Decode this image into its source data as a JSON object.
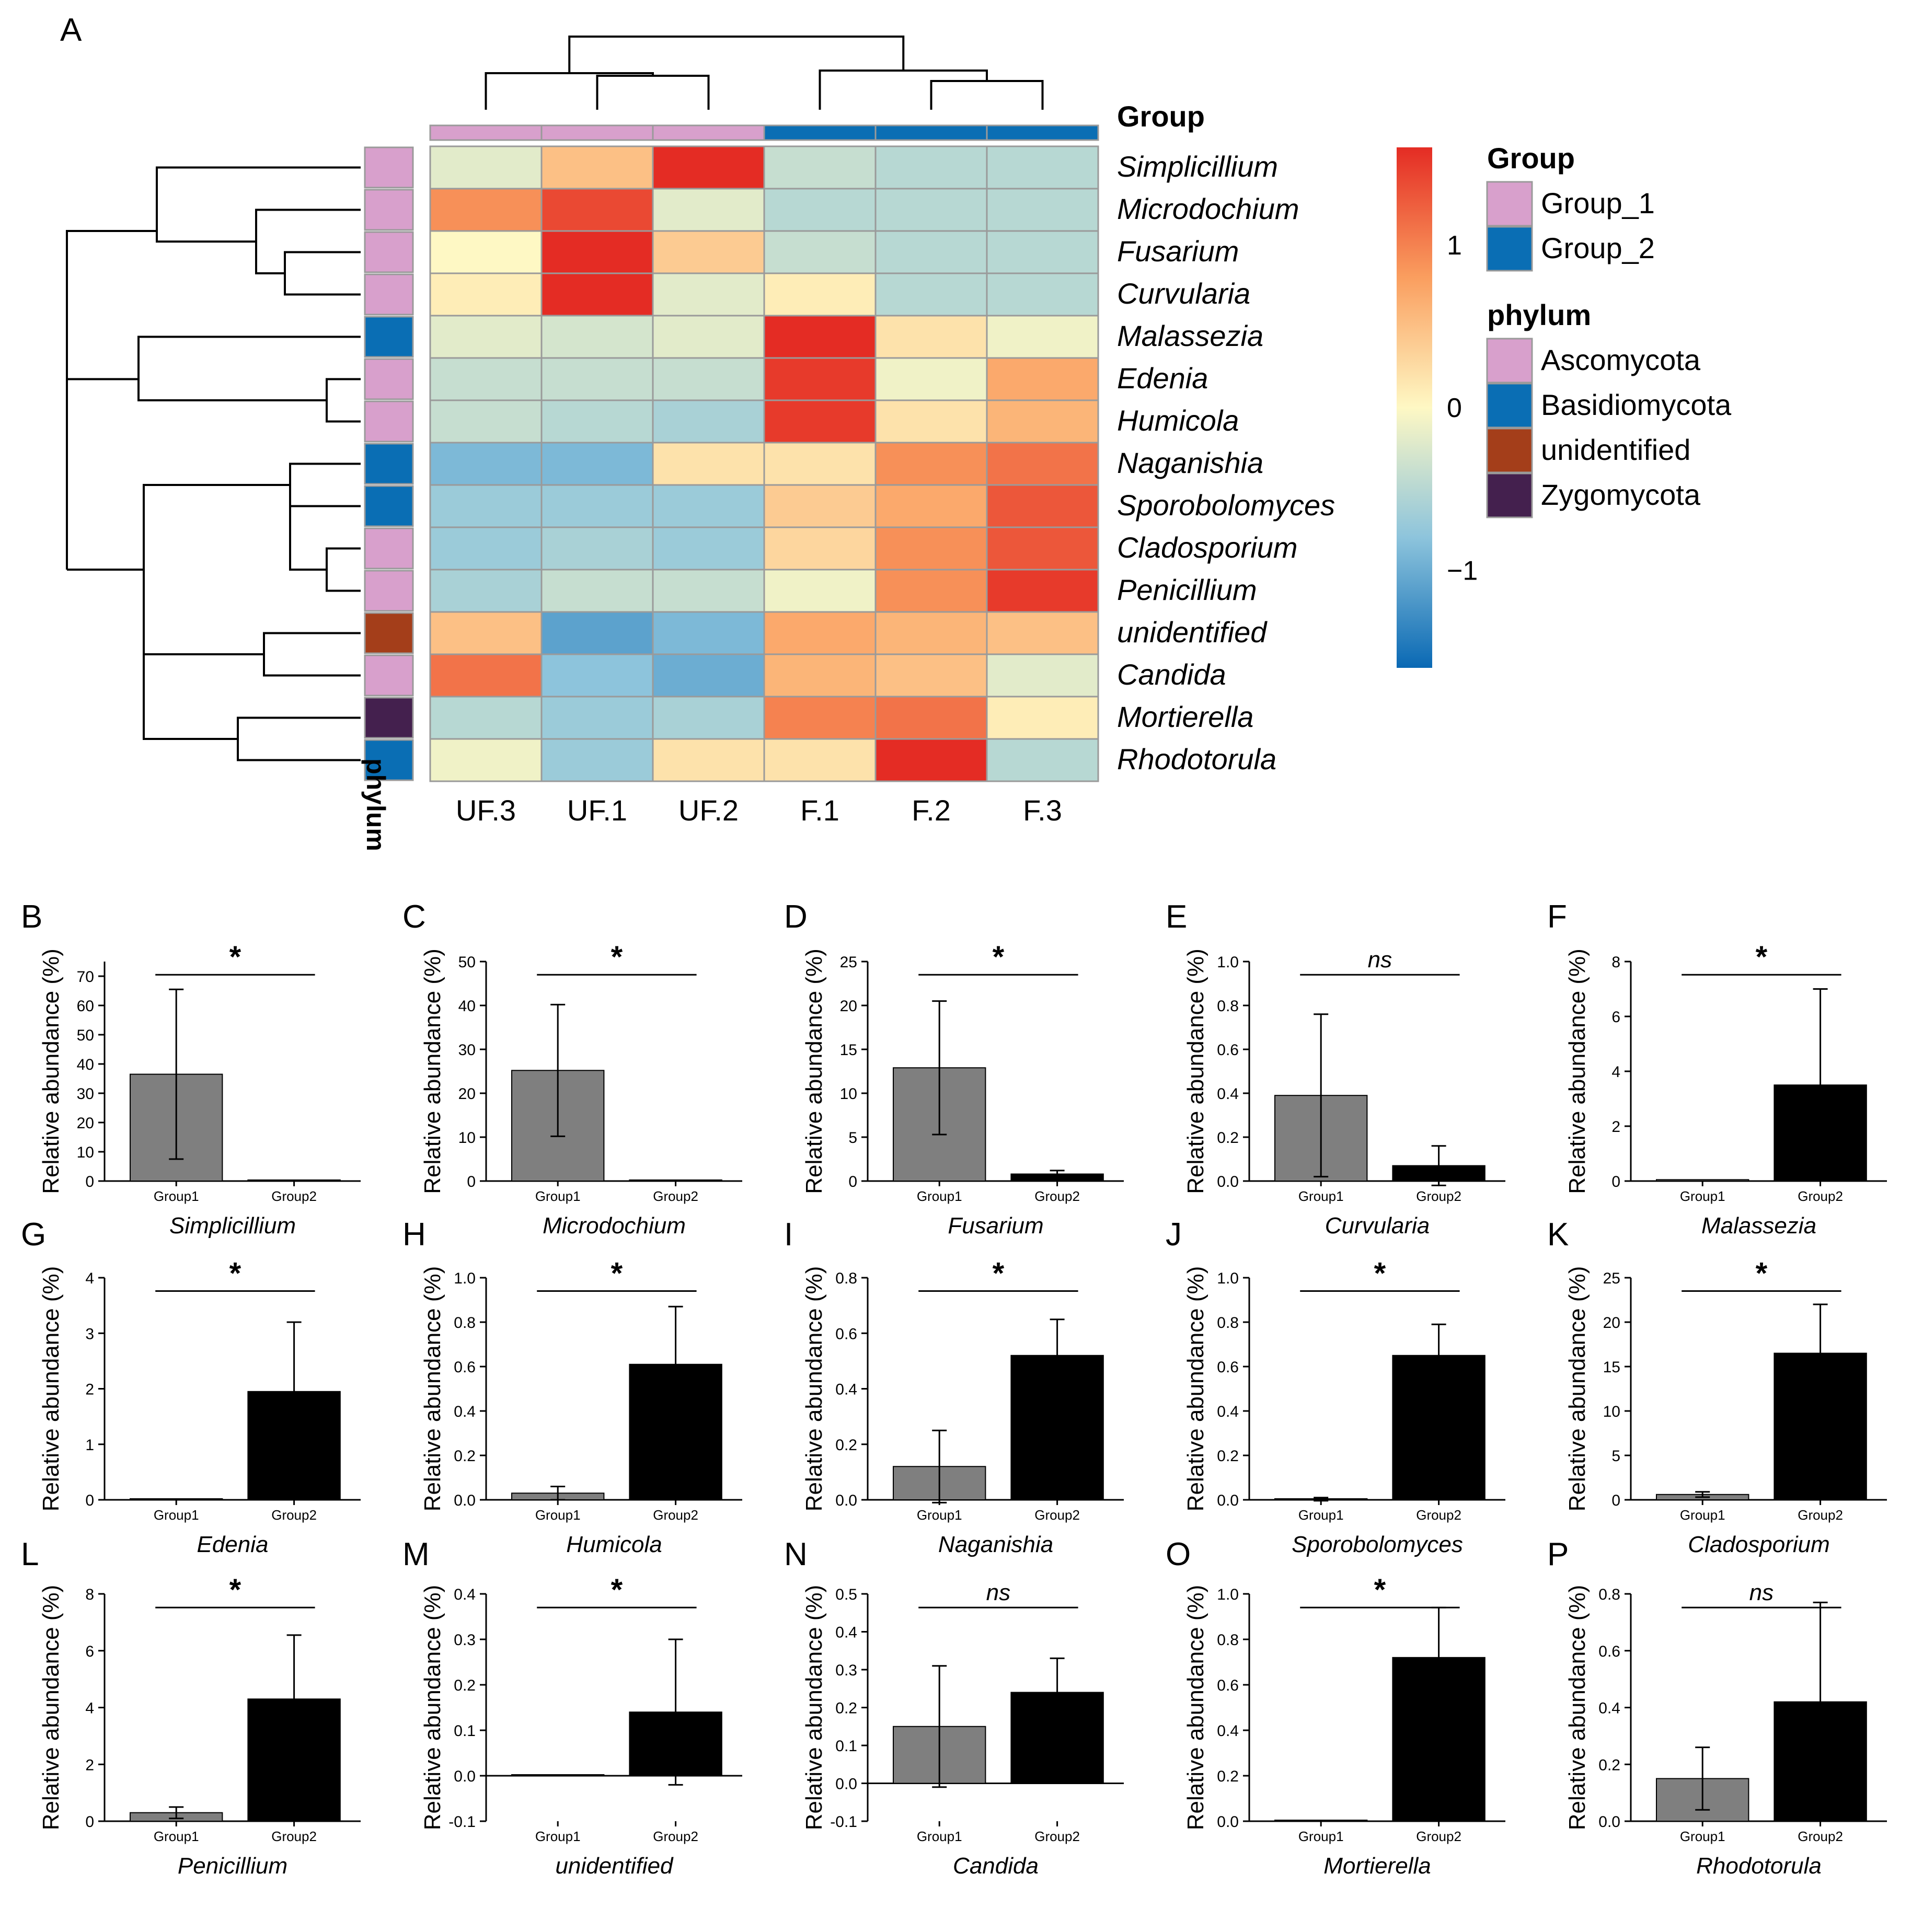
{
  "panel_a": {
    "letter": "A",
    "group_title": "Group",
    "phylum_axis_label": "phylum",
    "samples": [
      "UF.3",
      "UF.1",
      "UF.2",
      "F.1",
      "F.2",
      "F.3"
    ],
    "sample_group": [
      "Group_1",
      "Group_1",
      "Group_1",
      "Group_2",
      "Group_2",
      "Group_2"
    ],
    "genera": [
      "Simplicillium",
      "Microdochium",
      "Fusarium",
      "Curvularia",
      "Malassezia",
      "Edenia",
      "Humicola",
      "Naganishia",
      "Sporobolomyces",
      "Cladosporium",
      "Penicillium",
      "unidentified",
      "Candida",
      "Mortierella",
      "Rhodotorula"
    ],
    "genus_phylum": [
      "Ascomycota",
      "Ascomycota",
      "Ascomycota",
      "Ascomycota",
      "Basidiomycota",
      "Ascomycota",
      "Ascomycota",
      "Basidiomycota",
      "Basidiomycota",
      "Ascomycota",
      "Ascomycota",
      "unidentified",
      "Ascomycota",
      "Zygomycota",
      "Basidiomycota"
    ],
    "zscores": [
      [
        -0.2,
        0.5,
        1.8,
        -0.4,
        -0.5,
        -0.5
      ],
      [
        0.9,
        1.4,
        -0.2,
        -0.5,
        -0.5,
        -0.5
      ],
      [
        0.0,
        1.7,
        0.4,
        -0.4,
        -0.5,
        -0.5
      ],
      [
        0.1,
        1.8,
        -0.2,
        0.1,
        -0.5,
        -0.5
      ],
      [
        -0.2,
        -0.3,
        -0.2,
        1.8,
        0.2,
        -0.1
      ],
      [
        -0.4,
        -0.4,
        -0.4,
        1.5,
        -0.1,
        0.7
      ],
      [
        -0.4,
        -0.5,
        -0.6,
        1.5,
        0.2,
        0.6
      ],
      [
        -0.9,
        -0.9,
        0.2,
        0.2,
        0.9,
        1.1
      ],
      [
        -0.7,
        -0.7,
        -0.7,
        0.4,
        0.7,
        1.3
      ],
      [
        -0.7,
        -0.6,
        -0.7,
        0.3,
        0.9,
        1.3
      ],
      [
        -0.6,
        -0.4,
        -0.4,
        -0.1,
        0.9,
        1.5
      ],
      [
        0.5,
        -1.1,
        -0.9,
        0.7,
        0.6,
        0.5
      ],
      [
        1.1,
        -0.8,
        -1.0,
        0.6,
        0.5,
        -0.2
      ],
      [
        -0.5,
        -0.7,
        -0.6,
        1.0,
        1.1,
        0.1
      ],
      [
        -0.1,
        -0.7,
        0.2,
        0.2,
        1.8,
        -0.5
      ]
    ],
    "colorbar": {
      "ticks": [
        "1",
        "0",
        "−1"
      ],
      "min": -1.6,
      "max": 1.6
    },
    "legend": {
      "group_title": "Group",
      "groups": [
        {
          "label": "Group_1",
          "color": "#d8a0cc"
        },
        {
          "label": "Group_2",
          "color": "#0a6eb4"
        }
      ],
      "phylum_title": "phylum",
      "phyla": [
        {
          "label": "Ascomycota",
          "color": "#d8a0cc"
        },
        {
          "label": "Basidiomycota",
          "color": "#0a6eb4"
        },
        {
          "label": "unidentified",
          "color": "#a43e1a"
        },
        {
          "label": "Zygomycota",
          "color": "#44204e"
        }
      ]
    }
  },
  "colors": {
    "group1_bar": "#7f7f7f",
    "group2_bar": "#000000"
  },
  "chart_data": [
    {
      "type": "bar",
      "letter": "B",
      "categories": [
        "Group1",
        "Group2"
      ],
      "values": [
        36.5,
        0.2
      ],
      "errors": [
        29,
        0
      ],
      "ylim": [
        0,
        75
      ],
      "yticks": [
        "0",
        "10",
        "20",
        "30",
        "40",
        "50",
        "60",
        "70"
      ],
      "ylabel": "Relative abundance (%)",
      "xlabel": "Simplicillium",
      "significance": "*"
    },
    {
      "type": "bar",
      "letter": "C",
      "categories": [
        "Group1",
        "Group2"
      ],
      "values": [
        25.2,
        0.2
      ],
      "errors": [
        15,
        0
      ],
      "ylim": [
        0,
        50
      ],
      "yticks": [
        "0",
        "10",
        "20",
        "30",
        "40",
        "50"
      ],
      "ylabel": "Relative abundance (%)",
      "xlabel": "Microdochium",
      "significance": "*"
    },
    {
      "type": "bar",
      "letter": "D",
      "categories": [
        "Group1",
        "Group2"
      ],
      "values": [
        12.9,
        0.8
      ],
      "errors": [
        7.6,
        0.4
      ],
      "ylim": [
        0,
        25
      ],
      "yticks": [
        "0",
        "5",
        "10",
        "15",
        "20",
        "25"
      ],
      "ylabel": "Relative abundance (%)",
      "xlabel": "Fusarium",
      "significance": "*"
    },
    {
      "type": "bar",
      "letter": "E",
      "categories": [
        "Group1",
        "Group2"
      ],
      "values": [
        0.39,
        0.07
      ],
      "errors": [
        0.37,
        0.09
      ],
      "ylim": [
        0,
        1.0
      ],
      "yticks": [
        "0.0",
        "0.2",
        "0.4",
        "0.6",
        "0.8",
        "1.0"
      ],
      "ylabel": "Relative abundance (%)",
      "xlabel": "Curvularia",
      "significance": "ns"
    },
    {
      "type": "bar",
      "letter": "F",
      "categories": [
        "Group1",
        "Group2"
      ],
      "values": [
        0.05,
        3.5
      ],
      "errors": [
        0,
        3.5
      ],
      "ylim": [
        0,
        8
      ],
      "yticks": [
        "0",
        "2",
        "4",
        "6",
        "8"
      ],
      "ylabel": "Relative abundance (%)",
      "xlabel": "Malassezia",
      "significance": "*"
    },
    {
      "type": "bar",
      "letter": "G",
      "categories": [
        "Group1",
        "Group2"
      ],
      "values": [
        0,
        1.95
      ],
      "errors": [
        0,
        1.25
      ],
      "ylim": [
        0,
        4
      ],
      "yticks": [
        "0",
        "1",
        "2",
        "3",
        "4"
      ],
      "ylabel": "Relative abundance (%)",
      "xlabel": "Edenia",
      "significance": "*"
    },
    {
      "type": "bar",
      "letter": "H",
      "categories": [
        "Group1",
        "Group2"
      ],
      "values": [
        0.03,
        0.61
      ],
      "errors": [
        0.03,
        0.26
      ],
      "ylim": [
        0,
        1.0
      ],
      "yticks": [
        "0.0",
        "0.2",
        "0.4",
        "0.6",
        "0.8",
        "1.0"
      ],
      "ylabel": "Relative abundance (%)",
      "xlabel": "Humicola",
      "significance": "*"
    },
    {
      "type": "bar",
      "letter": "I",
      "categories": [
        "Group1",
        "Group2"
      ],
      "values": [
        0.12,
        0.52
      ],
      "errors": [
        0.13,
        0.13
      ],
      "ylim": [
        0,
        0.8
      ],
      "yticks": [
        "0.0",
        "0.2",
        "0.4",
        "0.6",
        "0.8"
      ],
      "ylabel": "Relative abundance (%)",
      "xlabel": "Naganishia",
      "significance": "*"
    },
    {
      "type": "bar",
      "letter": "J",
      "categories": [
        "Group1",
        "Group2"
      ],
      "values": [
        0.003,
        0.65
      ],
      "errors": [
        0.007,
        0.14
      ],
      "ylim": [
        0,
        1.0
      ],
      "yticks": [
        "0.0",
        "0.2",
        "0.4",
        "0.6",
        "0.8",
        "1.0"
      ],
      "ylabel": "Relative abundance (%)",
      "xlabel": "Sporobolomyces",
      "significance": "*"
    },
    {
      "type": "bar",
      "letter": "K",
      "categories": [
        "Group1",
        "Group2"
      ],
      "values": [
        0.6,
        16.5
      ],
      "errors": [
        0.3,
        5.5
      ],
      "ylim": [
        0,
        25
      ],
      "yticks": [
        "0",
        "5",
        "10",
        "15",
        "20",
        "25"
      ],
      "ylabel": "Relative abundance (%)",
      "xlabel": "Cladosporium",
      "significance": "*"
    },
    {
      "type": "bar",
      "letter": "L",
      "categories": [
        "Group1",
        "Group2"
      ],
      "values": [
        0.3,
        4.3
      ],
      "errors": [
        0.2,
        2.25
      ],
      "ylim": [
        0,
        8
      ],
      "yticks": [
        "0",
        "2",
        "4",
        "6",
        "8"
      ],
      "ylabel": "Relative abundance (%)",
      "xlabel": "Penicillium",
      "significance": "*"
    },
    {
      "type": "bar",
      "letter": "M",
      "categories": [
        "Group1",
        "Group2"
      ],
      "values": [
        0,
        0.14
      ],
      "errors": [
        0,
        0.16
      ],
      "ylim": [
        -0.1,
        0.4
      ],
      "yticks": [
        "-0.1",
        "0.0",
        "0.1",
        "0.2",
        "0.3",
        "0.4"
      ],
      "ylabel": "Relative abundance (%)",
      "xlabel": "unidentified",
      "significance": "*"
    },
    {
      "type": "bar",
      "letter": "N",
      "categories": [
        "Group1",
        "Group2"
      ],
      "values": [
        0.15,
        0.24
      ],
      "errors": [
        0.16,
        0.09
      ],
      "ylim": [
        -0.1,
        0.5
      ],
      "yticks": [
        "-0.1",
        "0.0",
        "0.1",
        "0.2",
        "0.3",
        "0.4",
        "0.5"
      ],
      "ylabel": "Relative abundance (%)",
      "xlabel": "Candida",
      "significance": "ns"
    },
    {
      "type": "bar",
      "letter": "O",
      "categories": [
        "Group1",
        "Group2"
      ],
      "values": [
        0,
        0.72
      ],
      "errors": [
        0,
        0.22
      ],
      "ylim": [
        0,
        1.0
      ],
      "yticks": [
        "0.0",
        "0.2",
        "0.4",
        "0.6",
        "0.8",
        "1.0"
      ],
      "ylabel": "Relative abundance (%)",
      "xlabel": "Mortierella",
      "significance": "*"
    },
    {
      "type": "bar",
      "letter": "P",
      "categories": [
        "Group1",
        "Group2"
      ],
      "values": [
        0.15,
        0.42
      ],
      "errors": [
        0.11,
        0.35
      ],
      "ylim": [
        0,
        0.8
      ],
      "yticks": [
        "0.0",
        "0.2",
        "0.4",
        "0.6",
        "0.8"
      ],
      "ylabel": "Relative abundance (%)",
      "xlabel": "Rhodotorula",
      "significance": "ns"
    }
  ]
}
